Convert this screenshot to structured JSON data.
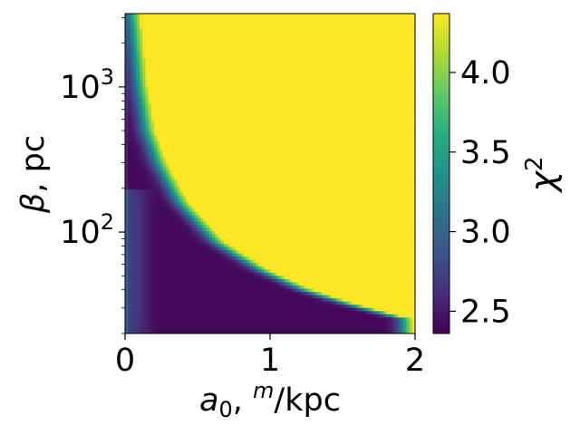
{
  "chart_data": {
    "type": "heatmap",
    "title": "",
    "xlabel": "a₀, ᵐ/kpc",
    "xlabel_parts": {
      "var": "a",
      "sub": "0",
      "sep": ", ",
      "sup": "m",
      "unit": "/kpc"
    },
    "ylabel": "β, pc",
    "colorbar_label": "χ²",
    "colorbar_label_parts": {
      "var": "χ",
      "sup": "2"
    },
    "x": {
      "min": 0,
      "max": 2,
      "scale": "linear",
      "ticks": [
        0,
        1,
        2
      ],
      "tick_labels": [
        "0",
        "1",
        "2"
      ]
    },
    "y": {
      "min": 20,
      "max": 3200,
      "scale": "log",
      "ticks": [
        100,
        1000
      ],
      "tick_labels": [
        {
          "base": "10",
          "exp": "2"
        },
        {
          "base": "10",
          "exp": "3"
        }
      ]
    },
    "colorbar": {
      "min": 2.36,
      "max": 4.37,
      "colormap": "viridis",
      "ticks": [
        2.5,
        3.0,
        3.5,
        4.0
      ],
      "tick_labels": [
        "2.5",
        "3.0",
        "3.5",
        "4.0"
      ]
    },
    "grid": false,
    "boundary_curve": {
      "description_units": "a0 (m/kpc) vs beta (pc)",
      "points": [
        [
          0.12,
          3200
        ],
        [
          0.14,
          2000
        ],
        [
          0.17,
          1000
        ],
        [
          0.22,
          500
        ],
        [
          0.3,
          300
        ],
        [
          0.45,
          160
        ],
        [
          0.7,
          85
        ],
        [
          1.0,
          55
        ],
        [
          1.3,
          40
        ],
        [
          1.6,
          32
        ],
        [
          2.0,
          25
        ]
      ]
    },
    "z_values": {
      "plateau": 4.37,
      "valley_min": 2.4,
      "far_left_edge": 2.85
    }
  }
}
